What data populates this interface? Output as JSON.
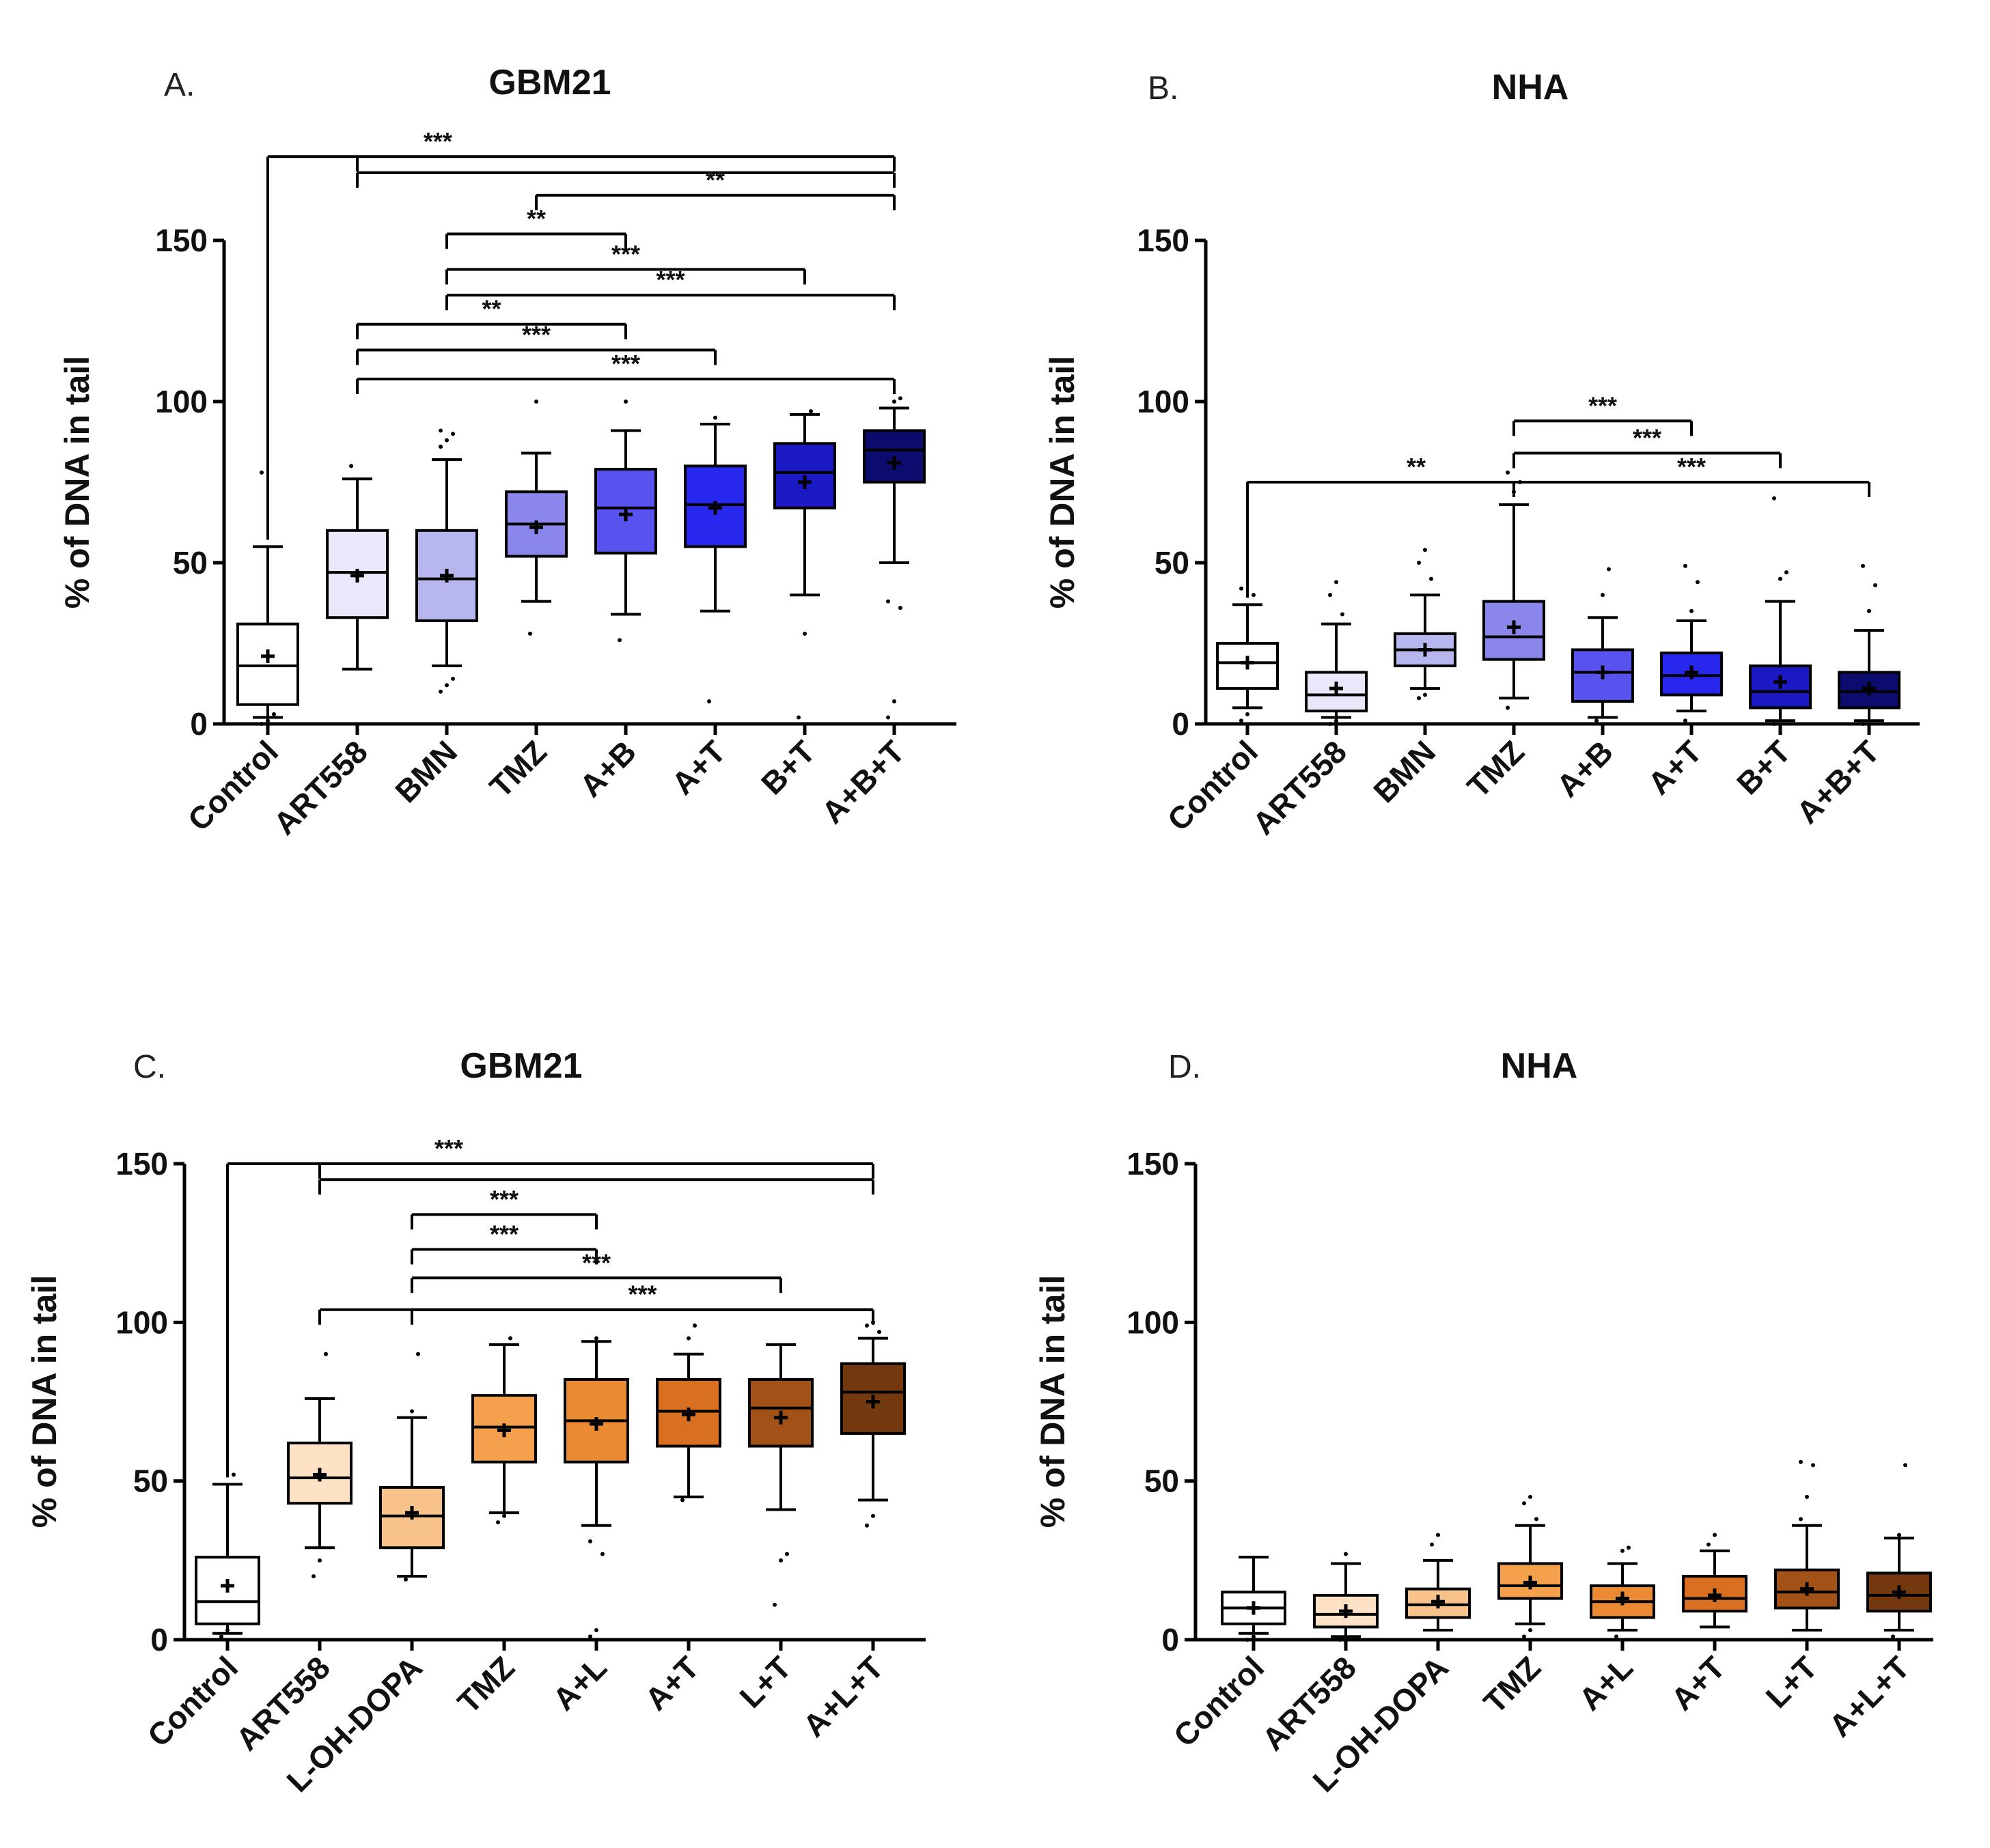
{
  "figure": {
    "style": {
      "box_stroke": "#000000",
      "axis_color": "#000000",
      "text_color": "#111111"
    },
    "panels": [
      {
        "letter": "A.",
        "title": "GBM21",
        "ylabel": "% of DNA in tail",
        "yticks": [
          "0",
          "50",
          "100",
          "150"
        ],
        "chart_data": {
          "type": "box",
          "title": "GBM21",
          "ylabel": "% of DNA in tail",
          "ylim": [
            0,
            150
          ],
          "categories": [
            "Control",
            "ART558",
            "BMN",
            "TMZ",
            "A+B",
            "A+T",
            "B+T",
            "A+B+T"
          ],
          "fill_colors": [
            "#ffffff",
            "#e9e8fb",
            "#b8b6ef",
            "#8a86ec",
            "#5852ee",
            "#2727ee",
            "#1a19c4",
            "#0c0b6e"
          ],
          "boxes": [
            {
              "min": 2,
              "q1": 6,
              "median": 18,
              "q3": 31,
              "max": 55,
              "mean": 21,
              "outliers": [
                0,
                1,
                3,
                78
              ]
            },
            {
              "min": 17,
              "q1": 33,
              "median": 47,
              "q3": 60,
              "max": 76,
              "mean": 46,
              "outliers": [
                80
              ]
            },
            {
              "min": 18,
              "q1": 32,
              "median": 45,
              "q3": 60,
              "max": 82,
              "mean": 46,
              "outliers": [
                10,
                12,
                14,
                86,
                88,
                90,
                91
              ]
            },
            {
              "min": 38,
              "q1": 52,
              "median": 62,
              "q3": 72,
              "max": 84,
              "mean": 61,
              "outliers": [
                28,
                100
              ]
            },
            {
              "min": 34,
              "q1": 53,
              "median": 67,
              "q3": 79,
              "max": 91,
              "mean": 65,
              "outliers": [
                26,
                100
              ]
            },
            {
              "min": 35,
              "q1": 55,
              "median": 68,
              "q3": 80,
              "max": 93,
              "mean": 67,
              "outliers": [
                7,
                95
              ]
            },
            {
              "min": 40,
              "q1": 67,
              "median": 78,
              "q3": 87,
              "max": 96,
              "mean": 75,
              "outliers": [
                2,
                28,
                97
              ]
            },
            {
              "min": 50,
              "q1": 75,
              "median": 85,
              "q3": 91,
              "max": 98,
              "mean": 81,
              "outliers": [
                2,
                7,
                36,
                38,
                100,
                101
              ]
            }
          ],
          "significance": [
            {
              "a": 0,
              "b": [
                1,
                7
              ],
              "stem": 3,
              "label": "***",
              "y": 176
            },
            {
              "a": 1,
              "b": [
                7
              ],
              "label": "",
              "y": 171
            },
            {
              "a": 3,
              "b": [
                7
              ],
              "label": "**",
              "y": 164
            },
            {
              "a": 2,
              "b": [
                4
              ],
              "label": "**",
              "y": 152
            },
            {
              "a": 2,
              "b": [
                6
              ],
              "label": "***",
              "y": 141
            },
            {
              "a": 2,
              "b": [
                7
              ],
              "label": "***",
              "y": 133
            },
            {
              "a": 1,
              "b": [
                4
              ],
              "label": "**",
              "y": 124
            },
            {
              "a": 1,
              "b": [
                5
              ],
              "label": "***",
              "y": 116
            },
            {
              "a": 1,
              "b": [
                7
              ],
              "label": "***",
              "y": 107
            }
          ]
        }
      },
      {
        "letter": "B.",
        "title": "NHA",
        "ylabel": "% of DNA in tail",
        "yticks": [
          "0",
          "50",
          "100",
          "150"
        ],
        "chart_data": {
          "type": "box",
          "title": "NHA",
          "ylabel": "% of DNA in tail",
          "ylim": [
            0,
            150
          ],
          "categories": [
            "Control",
            "ART558",
            "BMN",
            "TMZ",
            "A+B",
            "A+T",
            "B+T",
            "A+B+T"
          ],
          "fill_colors": [
            "#ffffff",
            "#e9e8fb",
            "#b8b6ef",
            "#8a86ec",
            "#5852ee",
            "#2727ee",
            "#1a19c4",
            "#0c0b6e"
          ],
          "boxes": [
            {
              "min": 5,
              "q1": 11,
              "median": 19,
              "q3": 25,
              "max": 37,
              "mean": 19,
              "outliers": [
                1,
                3,
                40,
                42
              ]
            },
            {
              "min": 2,
              "q1": 4,
              "median": 9,
              "q3": 16,
              "max": 31,
              "mean": 11,
              "outliers": [
                0,
                1,
                34,
                40,
                44
              ]
            },
            {
              "min": 11,
              "q1": 18,
              "median": 23,
              "q3": 28,
              "max": 40,
              "mean": 23,
              "outliers": [
                8,
                9,
                45,
                50,
                54
              ]
            },
            {
              "min": 8,
              "q1": 20,
              "median": 27,
              "q3": 38,
              "max": 68,
              "mean": 30,
              "outliers": [
                5,
                72,
                75,
                78
              ]
            },
            {
              "min": 2,
              "q1": 7,
              "median": 16,
              "q3": 23,
              "max": 33,
              "mean": 16,
              "outliers": [
                1,
                40,
                48
              ]
            },
            {
              "min": 4,
              "q1": 9,
              "median": 15,
              "q3": 22,
              "max": 32,
              "mean": 16,
              "outliers": [
                1,
                35,
                44,
                49
              ]
            },
            {
              "min": 1,
              "q1": 5,
              "median": 10,
              "q3": 18,
              "max": 38,
              "mean": 13,
              "outliers": [
                0,
                45,
                47,
                70
              ]
            },
            {
              "min": 1,
              "q1": 5,
              "median": 10,
              "q3": 16,
              "max": 29,
              "mean": 11,
              "outliers": [
                0,
                35,
                43,
                49
              ]
            }
          ],
          "significance": [
            {
              "a": 3,
              "b": [
                5
              ],
              "label": "***",
              "y": 94
            },
            {
              "a": 3,
              "b": [
                6
              ],
              "label": "***",
              "y": 84
            },
            {
              "a": 0,
              "b": [
                3,
                7
              ],
              "stem": 3,
              "label": "**",
              "y": 75
            },
            {
              "a": 3,
              "b": [
                7
              ],
              "label": "***",
              "y": 75
            }
          ]
        }
      },
      {
        "letter": "C.",
        "title": "GBM21",
        "ylabel": "% of DNA in tail",
        "yticks": [
          "0",
          "50",
          "100",
          "150"
        ],
        "chart_data": {
          "type": "box",
          "title": "GBM21",
          "ylabel": "% of DNA in tail",
          "ylim": [
            0,
            150
          ],
          "categories": [
            "Control",
            "ART558",
            "L-OH-DOPA",
            "TMZ",
            "A+L",
            "A+T",
            "L+T",
            "A+L+T"
          ],
          "fill_colors": [
            "#ffffff",
            "#fde2c6",
            "#f8c28b",
            "#f5a04d",
            "#ea8a33",
            "#d96f20",
            "#a25216",
            "#74380e"
          ],
          "boxes": [
            {
              "min": 2,
              "q1": 5,
              "median": 12,
              "q3": 26,
              "max": 49,
              "mean": 17,
              "outliers": [
                1,
                3,
                52
              ]
            },
            {
              "min": 29,
              "q1": 43,
              "median": 51,
              "q3": 62,
              "max": 76,
              "mean": 52,
              "outliers": [
                20,
                25,
                90
              ]
            },
            {
              "min": 20,
              "q1": 29,
              "median": 39,
              "q3": 48,
              "max": 70,
              "mean": 40,
              "outliers": [
                19,
                72,
                90
              ]
            },
            {
              "min": 40,
              "q1": 56,
              "median": 67,
              "q3": 77,
              "max": 93,
              "mean": 66,
              "outliers": [
                37,
                39,
                95
              ]
            },
            {
              "min": 36,
              "q1": 56,
              "median": 69,
              "q3": 82,
              "max": 94,
              "mean": 68,
              "outliers": [
                1,
                3,
                27,
                31,
                95
              ]
            },
            {
              "min": 45,
              "q1": 61,
              "median": 72,
              "q3": 82,
              "max": 90,
              "mean": 71,
              "outliers": [
                44,
                95,
                99
              ]
            },
            {
              "min": 41,
              "q1": 61,
              "median": 73,
              "q3": 82,
              "max": 93,
              "mean": 70,
              "outliers": [
                11,
                25,
                27
              ]
            },
            {
              "min": 44,
              "q1": 65,
              "median": 78,
              "q3": 87,
              "max": 95,
              "mean": 75,
              "outliers": [
                36,
                39,
                97,
                99,
                100
              ]
            }
          ],
          "significance": [
            {
              "a": 0,
              "b": [
                1,
                7
              ],
              "stem": 4,
              "label": "***",
              "y": 150
            },
            {
              "a": 1,
              "b": [
                7
              ],
              "label": "",
              "y": 145
            },
            {
              "a": 2,
              "b": [
                4
              ],
              "label": "***",
              "y": 134
            },
            {
              "a": 2,
              "b": [
                4
              ],
              "label": "***",
              "y": 123
            },
            {
              "a": 2,
              "b": [
                6
              ],
              "label": "***",
              "y": 114
            },
            {
              "a": 2,
              "b": [
                7
              ],
              "label": "***",
              "y": 104
            },
            {
              "a": 1,
              "b": [
                7
              ],
              "label": "",
              "y": 104
            }
          ]
        }
      },
      {
        "letter": "D.",
        "title": "NHA",
        "ylabel": "% of DNA in tail",
        "yticks": [
          "0",
          "50",
          "100",
          "150"
        ],
        "chart_data": {
          "type": "box",
          "title": "NHA",
          "ylabel": "% of DNA in tail",
          "ylim": [
            0,
            150
          ],
          "categories": [
            "Control",
            "ART558",
            "L-OH-DOPA",
            "TMZ",
            "A+L",
            "A+T",
            "L+T",
            "A+L+T"
          ],
          "fill_colors": [
            "#ffffff",
            "#fde2c6",
            "#f8c28b",
            "#f5a04d",
            "#ea8a33",
            "#d96f20",
            "#a25216",
            "#74380e"
          ],
          "boxes": [
            {
              "min": 2,
              "q1": 5,
              "median": 10,
              "q3": 15,
              "max": 26,
              "mean": 10,
              "outliers": [
                0,
                1
              ]
            },
            {
              "min": 1,
              "q1": 4,
              "median": 8,
              "q3": 14,
              "max": 24,
              "mean": 9,
              "outliers": [
                0,
                27
              ]
            },
            {
              "min": 3,
              "q1": 7,
              "median": 11,
              "q3": 16,
              "max": 25,
              "mean": 12,
              "outliers": [
                30,
                33
              ]
            },
            {
              "min": 5,
              "q1": 13,
              "median": 17,
              "q3": 24,
              "max": 36,
              "mean": 18,
              "outliers": [
                1,
                3,
                38,
                43,
                45
              ]
            },
            {
              "min": 3,
              "q1": 7,
              "median": 12,
              "q3": 17,
              "max": 24,
              "mean": 13,
              "outliers": [
                1,
                28,
                29
              ]
            },
            {
              "min": 4,
              "q1": 9,
              "median": 13,
              "q3": 20,
              "max": 28,
              "mean": 14,
              "outliers": [
                30,
                33
              ]
            },
            {
              "min": 3,
              "q1": 10,
              "median": 15,
              "q3": 22,
              "max": 36,
              "mean": 16,
              "outliers": [
                38,
                45,
                55,
                56
              ]
            },
            {
              "min": 3,
              "q1": 9,
              "median": 14,
              "q3": 21,
              "max": 32,
              "mean": 15,
              "outliers": [
                1,
                33,
                55
              ]
            }
          ],
          "significance": []
        }
      }
    ]
  }
}
